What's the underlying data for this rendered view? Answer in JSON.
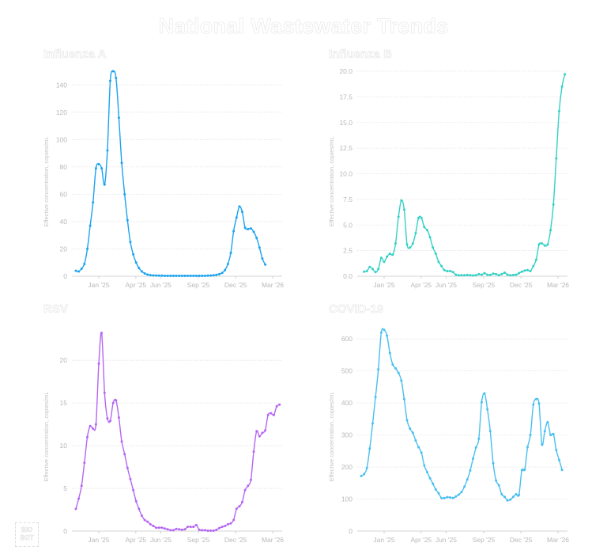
{
  "title": "National Wastewater Trends",
  "logo": {
    "line1": "BIO",
    "line2": "BOT"
  },
  "x_tick_labels": [
    "Jan '25",
    "Apr '25",
    "Jun '25",
    "Sep '25",
    "Dec '25",
    "Mar '26"
  ],
  "y_axis_label": "Effective concentration, copies/mL",
  "chart_data": [
    {
      "type": "line",
      "title": "Influenza A",
      "color": "#1aa3f0",
      "ylabel": "Effective concentration, copies/mL",
      "ylim": [
        0,
        150
      ],
      "yticks": [
        0,
        20,
        40,
        60,
        80,
        100,
        120,
        140
      ],
      "ytick_labels": [
        "0",
        "20",
        "40",
        "60",
        "80",
        "100",
        "120",
        "140"
      ],
      "grid": true,
      "x_start_weeks_before_jan25": 8,
      "values": [
        4,
        3.5,
        5.5,
        9,
        20,
        37,
        54,
        79,
        82,
        79,
        67,
        92,
        143,
        150,
        145,
        116,
        83,
        60,
        41,
        25,
        16,
        10,
        6,
        3.5,
        2,
        1.2,
        0.8,
        0.6,
        0.5,
        0.4,
        0.4,
        0.3,
        0.3,
        0.3,
        0.3,
        0.3,
        0.3,
        0.3,
        0.3,
        0.3,
        0.3,
        0.3,
        0.3,
        0.3,
        0.3,
        0.3,
        0.4,
        0.5,
        0.7,
        1,
        1.5,
        2.5,
        4.5,
        9,
        17,
        33,
        43,
        51,
        47,
        35.5,
        34.5,
        35,
        32.5,
        28,
        21,
        13,
        8.5
      ]
    },
    {
      "type": "line",
      "title": "Influenza B",
      "color": "#33d1c4",
      "ylabel": "Effective concentration, copies/mL",
      "ylim": [
        0,
        20
      ],
      "yticks": [
        0,
        2.5,
        5,
        7.5,
        10,
        12.5,
        15,
        17.5,
        20
      ],
      "ytick_labels": [
        "0.0",
        "2.5",
        "5.0",
        "7.5",
        "10.0",
        "12.5",
        "15.0",
        "17.5",
        "20.0"
      ],
      "grid": true,
      "x_start_weeks_before_jan25": 7,
      "values": [
        0.45,
        0.5,
        0.9,
        0.7,
        0.4,
        0.7,
        1.8,
        1.4,
        1.9,
        2.2,
        2.1,
        3.2,
        5.8,
        7.4,
        6.5,
        3.1,
        2.8,
        3.2,
        4.2,
        5.7,
        5.7,
        4.8,
        4.5,
        3.8,
        2.8,
        2.2,
        1.4,
        1.0,
        0.6,
        0.5,
        0.5,
        0.4,
        0.15,
        0.1,
        0.1,
        0.1,
        0.12,
        0.1,
        0.08,
        0.1,
        0.2,
        0.15,
        0.3,
        0.15,
        0.12,
        0.25,
        0.2,
        0.1,
        0.2,
        0.35,
        0.15,
        0.1,
        0.12,
        0.15,
        0.3,
        0.45,
        0.55,
        0.6,
        0.5,
        1.0,
        1.6,
        3.1,
        3.2,
        3.0,
        3.1,
        4.5,
        7.0,
        11.5,
        16.1,
        18.5,
        19.7
      ]
    },
    {
      "type": "line",
      "title": "RSV",
      "color": "#b566f2",
      "ylabel": "Effective concentration, copies/mL",
      "ylim": [
        0,
        24
      ],
      "yticks": [
        0,
        5,
        10,
        15,
        20
      ],
      "ytick_labels": [
        "0",
        "5",
        "10",
        "15",
        "20"
      ],
      "grid": true,
      "x_start_weeks_before_jan25": 8,
      "values": [
        2.6,
        3.8,
        5.3,
        8,
        11,
        12.3,
        12.0,
        12.5,
        19.6,
        23.2,
        16.2,
        13.2,
        12.9,
        15.0,
        15.3,
        13.3,
        10.5,
        9.0,
        7.4,
        6.1,
        4.8,
        3.5,
        2.6,
        1.8,
        1.3,
        1.1,
        0.8,
        0.6,
        0.4,
        0.4,
        0.4,
        0.3,
        0.2,
        0.1,
        0.1,
        0.25,
        0.2,
        0.15,
        0.2,
        0.5,
        0.5,
        0.5,
        0.7,
        0.15,
        0.1,
        0.1,
        0.05,
        0.05,
        0.05,
        0.15,
        0.35,
        0.5,
        0.6,
        0.8,
        0.9,
        1.3,
        2.6,
        2.9,
        3.4,
        4.8,
        5.3,
        6.0,
        9.3,
        11.7,
        11.1,
        11.5,
        11.8,
        13.6,
        13.8,
        13.6,
        14.6,
        14.8
      ]
    },
    {
      "type": "line",
      "title": "COVID-19",
      "color": "#48bff0",
      "ylabel": "Effective concentration, copies/mL",
      "ylim": [
        0,
        640
      ],
      "yticks": [
        0,
        100,
        200,
        300,
        400,
        500,
        600
      ],
      "ytick_labels": [
        "0",
        "100",
        "200",
        "300",
        "400",
        "500",
        "600"
      ],
      "grid": true,
      "x_start_weeks_before_jan25": 8,
      "values": [
        172,
        178,
        197,
        258,
        336,
        418,
        505,
        620,
        628,
        610,
        556,
        520,
        508,
        494,
        470,
        412,
        346,
        320,
        307,
        283,
        262,
        245,
        205,
        184,
        165,
        148,
        130,
        118,
        103,
        103,
        106,
        105,
        103,
        108,
        114,
        122,
        139,
        161,
        189,
        226,
        261,
        288,
        402,
        430,
        380,
        312,
        212,
        158,
        143,
        115,
        107,
        96,
        98,
        107,
        115,
        113,
        190,
        192,
        262,
        300,
        395,
        412,
        398,
        270,
        312,
        340,
        300,
        303,
        253,
        222,
        191
      ]
    }
  ]
}
